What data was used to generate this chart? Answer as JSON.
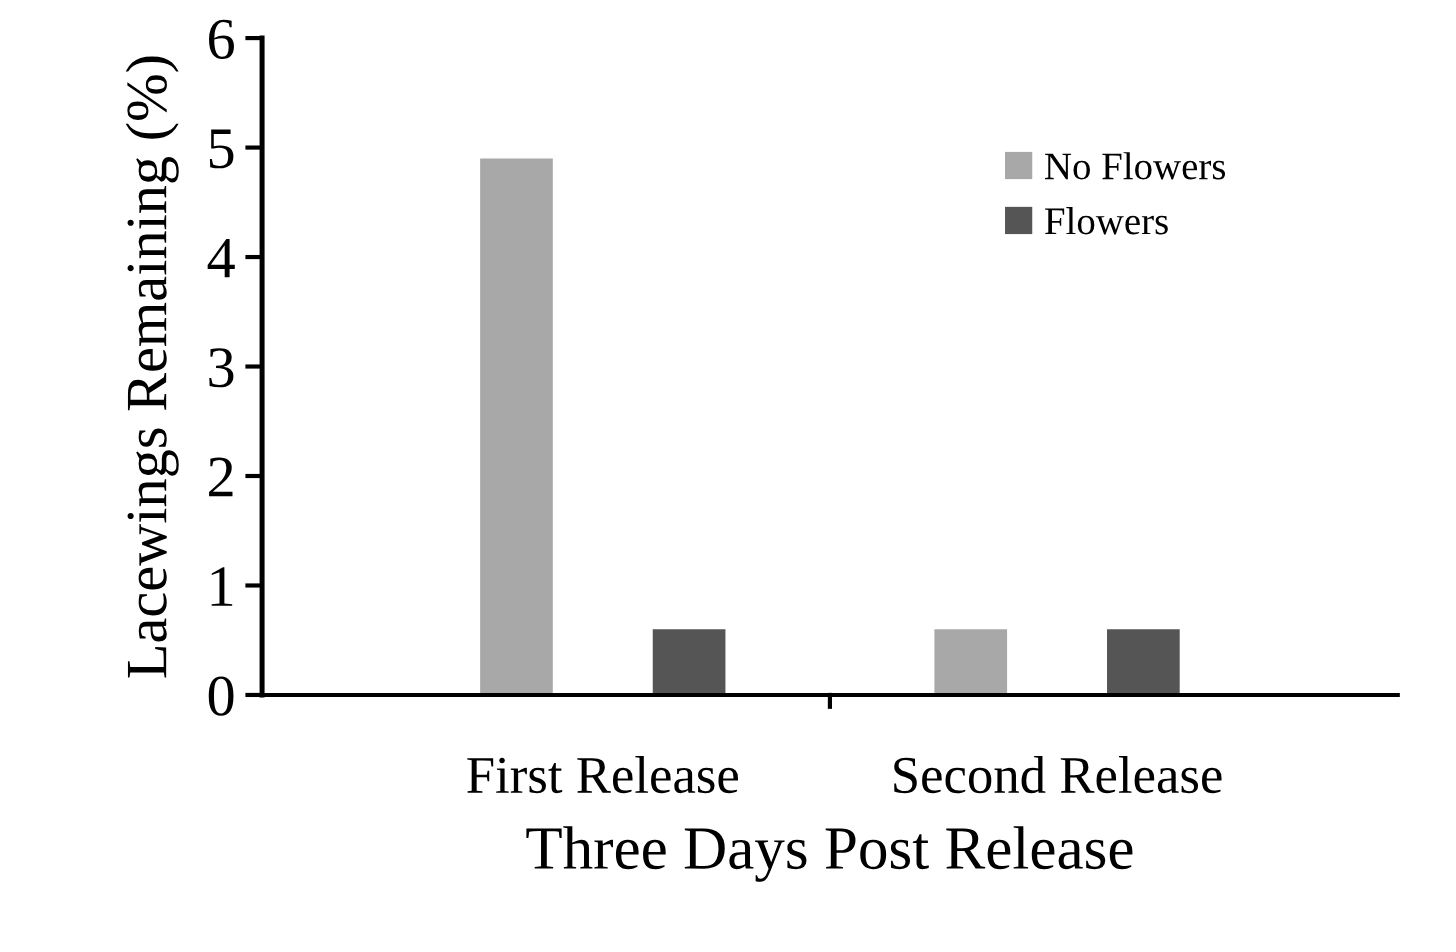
{
  "chart_data": {
    "type": "bar",
    "xlabel": "Three Days Post Release",
    "ylabel": "Lacewings Remaining (%)",
    "categories": [
      "First Release",
      "Second Release"
    ],
    "series": [
      {
        "name": "No Flowers",
        "color": "#a8a8a8",
        "values": [
          4.9,
          0.6
        ]
      },
      {
        "name": "Flowers",
        "color": "#555555",
        "values": [
          0.6,
          0.6
        ]
      }
    ],
    "ylim": [
      0,
      6
    ],
    "yticks": [
      0,
      1,
      2,
      3,
      4,
      5,
      6
    ],
    "grid": false,
    "legend": "top right"
  }
}
